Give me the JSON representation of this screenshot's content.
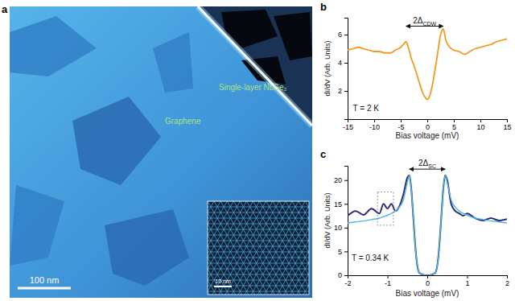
{
  "image_panel": {
    "label": "a",
    "graphene": "Graphene",
    "nbse2": "Single-layer NbSe₂",
    "scale_bar": "100 nm",
    "inset_scale_bar": "10 nm"
  },
  "chart_data": [
    {
      "type": "line",
      "title": "b",
      "x_label": "Bias voltage (mV)",
      "y_label": "dI/dV (Arb. Units)",
      "x": [
        -15,
        -14,
        -13,
        -12,
        -11,
        -10,
        -9,
        -8,
        -7,
        -6,
        -5,
        -4.5,
        -4,
        -3.5,
        -3,
        -2.5,
        -2,
        -1.5,
        -1,
        -0.5,
        0,
        0.5,
        1,
        1.5,
        2,
        2.5,
        3,
        3.5,
        4,
        5,
        6,
        7,
        8,
        9,
        10,
        11,
        12,
        13,
        14,
        15
      ],
      "series": [
        {
          "color": "#f39a1e",
          "line_style": "solid",
          "values": [
            4.9,
            5.0,
            5.1,
            5.0,
            4.9,
            4.8,
            4.8,
            4.7,
            4.7,
            4.9,
            5.1,
            5.3,
            5.5,
            5.0,
            4.3,
            3.8,
            3.2,
            2.6,
            2.0,
            1.6,
            1.4,
            1.7,
            2.5,
            3.6,
            4.8,
            6.0,
            6.4,
            5.6,
            5.2,
            4.9,
            4.8,
            4.6,
            4.8,
            5.0,
            5.1,
            5.2,
            5.3,
            5.5,
            5.6,
            5.7
          ]
        }
      ],
      "xlim": [
        -15,
        15
      ],
      "xticks": [
        -15,
        -10,
        -5,
        0,
        5,
        10,
        15
      ],
      "ylim": [
        0,
        7.2
      ],
      "yticks": [
        2,
        4,
        6
      ],
      "annotations": [
        {
          "text": "T = 2 K",
          "x": -14,
          "y": 0.6
        }
      ],
      "gap_marker": {
        "text": "2Δ",
        "subscript": "CDW",
        "x": [
          -4,
          3
        ],
        "y": 6.6
      }
    },
    {
      "type": "line",
      "title": "c",
      "x_label": "Bias voltage (mV)",
      "y_label": "dI/dV (Arb. Units)",
      "x": [
        -2,
        -1.8,
        -1.6,
        -1.4,
        -1.2,
        -1.1,
        -1.0,
        -0.9,
        -0.8,
        -0.7,
        -0.6,
        -0.5,
        -0.45,
        -0.4,
        -0.35,
        -0.3,
        -0.25,
        -0.2,
        -0.1,
        0,
        0.1,
        0.2,
        0.25,
        0.3,
        0.35,
        0.4,
        0.45,
        0.5,
        0.6,
        0.7,
        0.8,
        0.9,
        1.0,
        1.2,
        1.4,
        1.6,
        1.8,
        2.0
      ],
      "series": [
        {
          "color": "#2e2a78",
          "line_style": "solid",
          "values": [
            12.5,
            13.5,
            12.7,
            14.0,
            13.0,
            15.0,
            14.0,
            15.0,
            13.5,
            14.5,
            17.0,
            20.5,
            21.0,
            18.0,
            12.0,
            6.0,
            2.0,
            0.5,
            0.1,
            0.0,
            0.1,
            0.5,
            2.0,
            6.0,
            12.0,
            18.0,
            21.0,
            20.0,
            15.0,
            13.5,
            13.0,
            12.5,
            13.0,
            12.0,
            11.5,
            12.0,
            11.5,
            11.8
          ]
        },
        {
          "color": "#4fb8d8",
          "line_style": "solid",
          "values": [
            11.0,
            11.2,
            11.4,
            11.7,
            12.0,
            12.3,
            12.6,
            13.0,
            13.5,
            14.3,
            15.8,
            19.5,
            21.0,
            18.0,
            12.0,
            6.0,
            2.0,
            0.5,
            0.1,
            0.0,
            0.1,
            0.5,
            2.0,
            6.0,
            12.0,
            18.0,
            21.0,
            19.5,
            15.8,
            14.3,
            13.5,
            13.0,
            12.6,
            12.0,
            11.7,
            11.4,
            11.2,
            11.0
          ]
        }
      ],
      "xlim": [
        -2,
        2
      ],
      "xticks": [
        -2,
        -1,
        0,
        1,
        2
      ],
      "ylim": [
        0,
        23
      ],
      "yticks": [
        0,
        5,
        10,
        15,
        20
      ],
      "annotations": [
        {
          "text": "T = 0.34 K",
          "x": -1.9,
          "y": 3
        }
      ],
      "gap_marker": {
        "text": "2Δ",
        "subscript": "SC",
        "x": [
          -0.45,
          0.45
        ],
        "y": 22.3
      },
      "highlight_box": {
        "x": [
          -1.25,
          -0.85
        ],
        "y": [
          10.5,
          17.5
        ]
      }
    }
  ]
}
